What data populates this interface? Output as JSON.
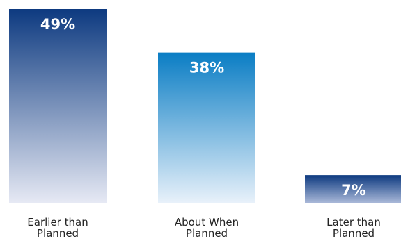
{
  "chart_data": {
    "type": "bar",
    "categories": [
      [
        "Earlier than",
        "Planned"
      ],
      [
        "About When",
        "Planned"
      ],
      [
        "Later than",
        "Planned"
      ]
    ],
    "values": [
      49,
      38,
      7
    ],
    "data_labels": [
      "49%",
      "38%",
      "7%"
    ],
    "unit": "%",
    "ylim": [
      0,
      49
    ],
    "grid": false,
    "legend": "none",
    "colors": {
      "bar_gradients": [
        {
          "top": "#0d3a80",
          "bottom": "#e6e9f4"
        },
        {
          "top": "#0a7dc4",
          "bottom": "#e8f1fa"
        },
        {
          "top": "#0d3a80",
          "bottom": "#a9b8d8"
        }
      ],
      "label": "#ffffff",
      "axis_text": "#222222"
    }
  }
}
